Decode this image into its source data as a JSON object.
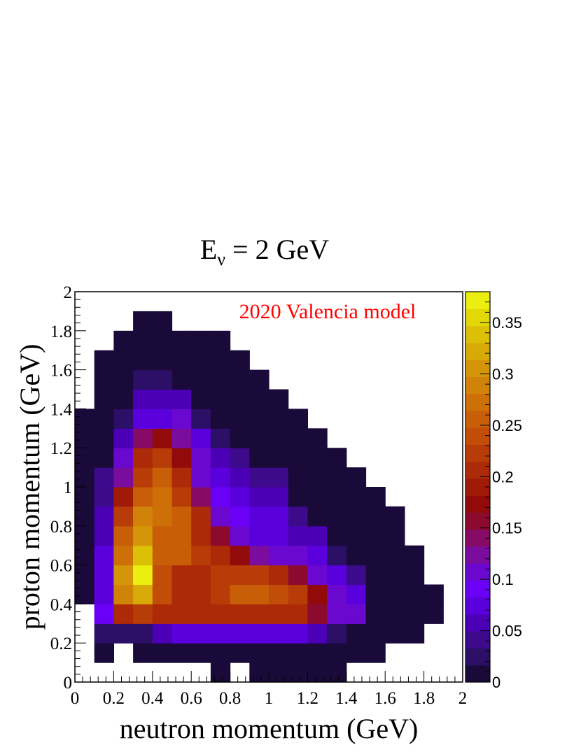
{
  "chart_data": {
    "type": "heatmap",
    "title": "E",
    "title_sub": "ν",
    "title_rest": " = 2 GeV",
    "annotation": "2020 Valencia model",
    "annotation_color": "#ff0000",
    "xlabel": "neutron momentum (GeV)",
    "ylabel": "proton momentum (GeV)",
    "xlim": [
      0,
      2
    ],
    "ylim": [
      0,
      2
    ],
    "bin_width": 0.1,
    "x_ticks": [
      "0",
      "0.2",
      "0.4",
      "0.6",
      "0.8",
      "1",
      "1.2",
      "1.4",
      "1.6",
      "1.8",
      "2"
    ],
    "y_ticks": [
      "0",
      "0.2",
      "0.4",
      "0.6",
      "0.8",
      "1",
      "1.2",
      "1.4",
      "1.6",
      "1.8",
      "2"
    ],
    "colorbar_ticks": [
      "0",
      "0.05",
      "0.1",
      "0.15",
      "0.2",
      "0.25",
      "0.3",
      "0.35"
    ],
    "zlim": [
      0,
      0.38
    ],
    "palette": [
      "#1a0a3a",
      "#2c0f66",
      "#3d0a8c",
      "#4b00b5",
      "#5a00dc",
      "#6a00f5",
      "#6b08d0",
      "#7a0c9e",
      "#860a66",
      "#8c0a2e",
      "#920a0a",
      "#a01a08",
      "#ad2a08",
      "#b83c08",
      "#c24d08",
      "#c95e08",
      "#ce7008",
      "#d18208",
      "#d49608",
      "#d8aa08",
      "#dcc008",
      "#e2d808",
      "#ecee10"
    ],
    "z": [
      [
        null,
        null,
        null,
        null,
        null,
        null,
        null,
        0.005,
        null,
        0.005,
        0.005,
        0.005,
        0.005,
        0.005,
        null,
        null,
        null,
        null,
        null,
        null
      ],
      [
        null,
        0.005,
        null,
        0.005,
        0.005,
        0.005,
        0.005,
        0.005,
        0.005,
        0.005,
        0.005,
        0.005,
        0.005,
        0.005,
        0.005,
        0.005,
        null,
        null,
        null,
        null
      ],
      [
        null,
        0.03,
        0.03,
        0.03,
        0.06,
        0.08,
        0.08,
        0.08,
        0.08,
        0.08,
        0.08,
        0.07,
        0.05,
        0.03,
        0.005,
        0.005,
        0.005,
        0.005,
        null,
        null
      ],
      [
        null,
        0.09,
        0.21,
        0.22,
        0.2,
        0.2,
        0.21,
        0.21,
        0.2,
        0.2,
        0.2,
        0.2,
        0.15,
        0.11,
        0.1,
        0.005,
        0.005,
        0.005,
        0.005,
        null
      ],
      [
        0.005,
        0.08,
        0.29,
        0.32,
        0.24,
        0.2,
        0.21,
        0.22,
        0.25,
        0.26,
        0.24,
        0.22,
        0.17,
        0.11,
        0.08,
        0.005,
        0.005,
        0.005,
        0.005,
        null
      ],
      [
        0.005,
        0.08,
        0.3,
        0.38,
        0.24,
        0.2,
        0.21,
        0.23,
        0.23,
        0.22,
        0.2,
        0.15,
        0.1,
        0.08,
        0.04,
        0.005,
        0.005,
        0.005,
        null,
        null
      ],
      [
        0.005,
        0.08,
        0.28,
        0.34,
        0.26,
        0.25,
        0.23,
        0.21,
        0.17,
        0.12,
        0.11,
        0.1,
        0.08,
        0.03,
        0.005,
        0.005,
        0.005,
        0.005,
        null,
        null
      ],
      [
        0.005,
        0.06,
        0.25,
        0.3,
        0.26,
        0.25,
        0.2,
        0.15,
        0.1,
        0.08,
        0.07,
        0.06,
        0.05,
        0.005,
        0.005,
        0.005,
        0.005,
        null,
        null,
        null
      ],
      [
        0.005,
        0.06,
        0.22,
        0.29,
        0.27,
        0.25,
        0.2,
        0.1,
        0.09,
        0.07,
        0.07,
        0.04,
        0.005,
        0.005,
        0.005,
        0.005,
        0.005,
        null,
        null,
        null
      ],
      [
        0.005,
        0.04,
        0.19,
        0.26,
        0.27,
        0.22,
        0.14,
        0.09,
        0.08,
        0.06,
        0.05,
        0.005,
        0.005,
        0.005,
        0.005,
        0.005,
        null,
        null,
        null,
        null
      ],
      [
        0.005,
        0.04,
        0.13,
        0.23,
        0.26,
        0.21,
        0.11,
        0.08,
        0.05,
        0.04,
        0.04,
        0.005,
        0.005,
        0.005,
        0.005,
        null,
        null,
        null,
        null,
        null
      ],
      [
        0.005,
        0.005,
        0.1,
        0.21,
        0.22,
        0.18,
        0.1,
        0.05,
        0.04,
        0.005,
        0.005,
        0.005,
        0.005,
        0.005,
        null,
        null,
        null,
        null,
        null,
        null
      ],
      [
        0.005,
        0.005,
        0.06,
        0.14,
        0.17,
        0.12,
        0.07,
        0.03,
        0.005,
        0.005,
        0.005,
        0.005,
        0.005,
        null,
        null,
        null,
        null,
        null,
        null,
        null
      ],
      [
        0.005,
        0.005,
        0.03,
        0.08,
        0.08,
        0.1,
        0.03,
        0.005,
        0.005,
        0.005,
        0.005,
        0.005,
        null,
        null,
        null,
        null,
        null,
        null,
        null,
        null
      ],
      [
        null,
        0.005,
        0.005,
        0.05,
        0.06,
        0.05,
        0.005,
        0.005,
        0.005,
        0.005,
        0.005,
        null,
        null,
        null,
        null,
        null,
        null,
        null,
        null,
        null
      ],
      [
        null,
        0.005,
        0.005,
        0.03,
        0.03,
        0.005,
        0.005,
        0.005,
        0.005,
        0.005,
        null,
        null,
        null,
        null,
        null,
        null,
        null,
        null,
        null,
        null
      ],
      [
        null,
        0.005,
        0.005,
        0.005,
        0.005,
        0.005,
        0.005,
        0.005,
        0.005,
        null,
        null,
        null,
        null,
        null,
        null,
        null,
        null,
        null,
        null,
        null
      ],
      [
        null,
        null,
        0.005,
        0.005,
        0.005,
        0.005,
        0.005,
        0.005,
        null,
        null,
        null,
        null,
        null,
        null,
        null,
        null,
        null,
        null,
        null,
        null
      ],
      [
        null,
        null,
        null,
        0.005,
        0.005,
        null,
        null,
        null,
        null,
        null,
        null,
        null,
        null,
        null,
        null,
        null,
        null,
        null,
        null,
        null
      ],
      [
        null,
        null,
        null,
        null,
        null,
        null,
        null,
        null,
        null,
        null,
        null,
        null,
        null,
        null,
        null,
        null,
        null,
        null,
        null,
        null
      ]
    ]
  }
}
